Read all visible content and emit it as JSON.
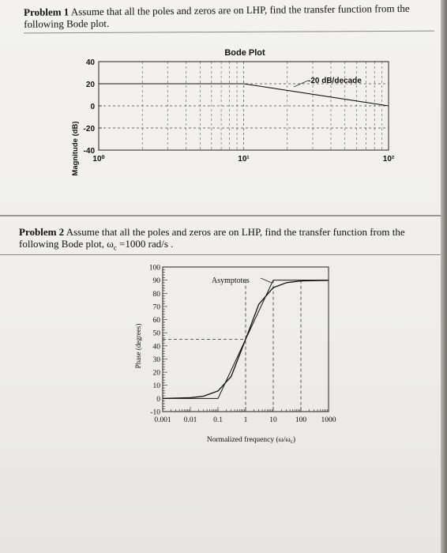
{
  "problem1": {
    "label": "Problem 1",
    "text": "Assume that all the poles and zeros are on LHP, find the transfer function from the",
    "text_line2": "following Bode plot."
  },
  "problem2": {
    "label": "Problem 2",
    "text": "Assume that all the poles and zeros are on LHP, find the transfer function from the",
    "text_line2": "following Bode plot, ω",
    "omega_sub": "c",
    "text_line2_end": " =1000 rad/s ."
  },
  "chart_data": [
    {
      "type": "line",
      "title": "Bode Plot",
      "ylabel": "Magnitude (dB)",
      "xlabel": "",
      "xscale": "log",
      "xlim": [
        1,
        100
      ],
      "ylim": [
        -40,
        40
      ],
      "y_ticks": [
        "40",
        "20",
        "0",
        "-20",
        "-40"
      ],
      "x_ticks": [
        "10⁰",
        "10¹",
        "10²"
      ],
      "grid": true,
      "annotations": [
        "-20 dB/decade"
      ],
      "series": [
        {
          "x": [
            1,
            10,
            100
          ],
          "y": [
            20,
            20,
            0
          ]
        }
      ]
    },
    {
      "type": "line",
      "title": "",
      "ylabel": "Phase (degrees)",
      "xlabel": "Normalized frequency (ω/ω",
      "xlabel_sub": "c",
      "xlabel_end": ")",
      "xscale": "log",
      "xlim": [
        0.001,
        1000
      ],
      "ylim": [
        -10,
        100
      ],
      "y_ticks": [
        "100",
        "90",
        "80",
        "70",
        "60",
        "50",
        "40",
        "30",
        "20",
        "10",
        "0",
        "-10"
      ],
      "x_ticks": [
        "0.001",
        "0.01",
        "0.1",
        "1",
        "10",
        "100",
        "1000"
      ],
      "annotations": [
        "Asymptotes"
      ],
      "series": [
        {
          "x": [
            0.001,
            0.1,
            10,
            1000
          ],
          "y": [
            0,
            0,
            90,
            90
          ]
        },
        {
          "x": [
            0.001,
            0.01,
            0.03,
            0.1,
            0.3,
            1,
            3,
            10,
            30,
            100,
            1000
          ],
          "y": [
            0,
            0.6,
            1.7,
            5.7,
            16.7,
            45,
            71.6,
            84.3,
            88.1,
            89.4,
            89.9
          ]
        }
      ]
    }
  ]
}
